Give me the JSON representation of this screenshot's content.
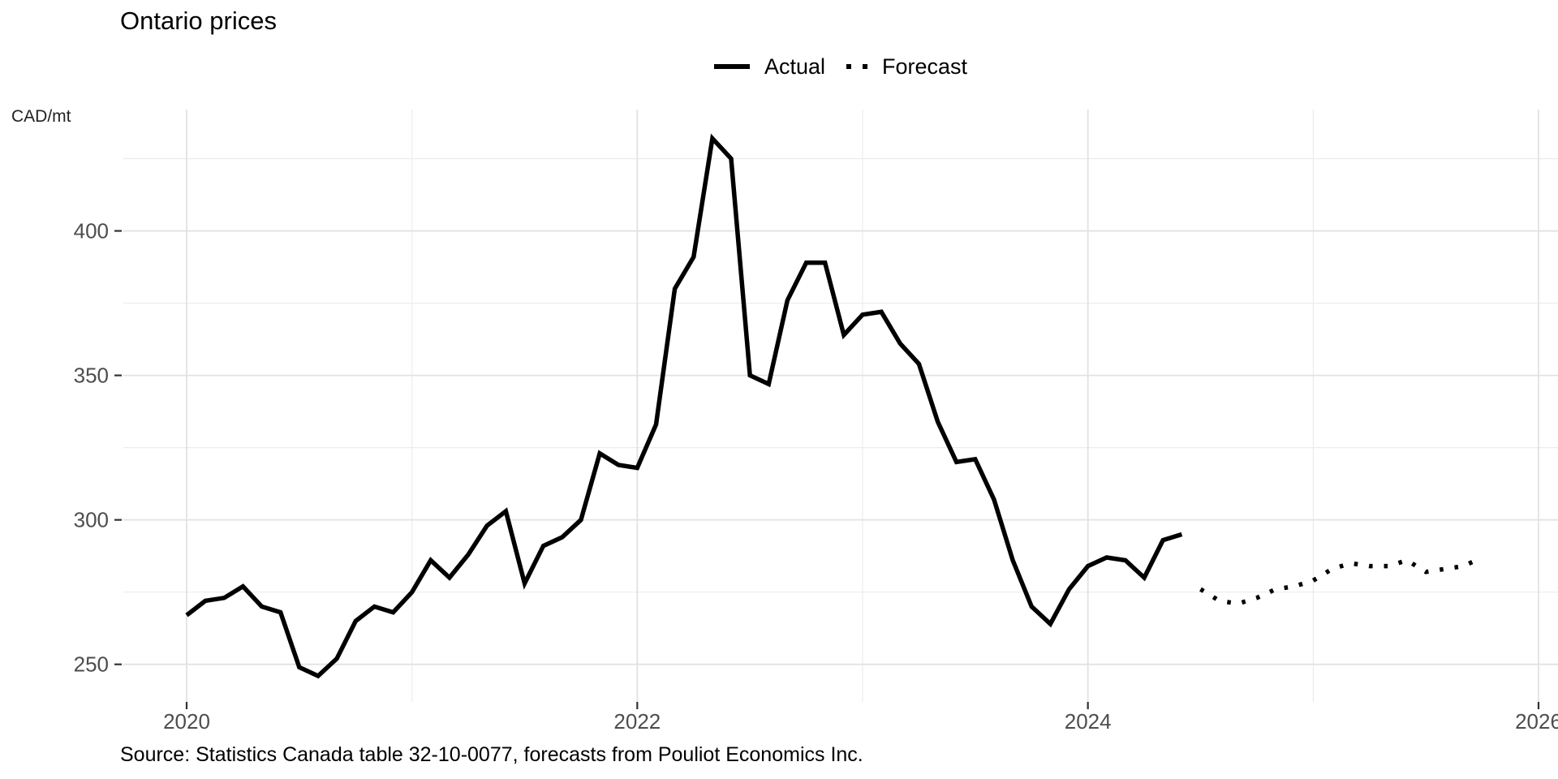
{
  "title": "Ontario prices",
  "unit_label": "CAD/mt",
  "source": "Source: Statistics Canada table 32-10-0077, forecasts from Pouliot Economics Inc.",
  "legend": {
    "actual": "Actual",
    "forecast": "Forecast"
  },
  "chart_data": {
    "type": "line",
    "title": "Ontario prices",
    "ylabel": "CAD/mt",
    "x_unit": "month",
    "x_start": "2020-01",
    "series": [
      {
        "name": "Actual",
        "style": "solid",
        "start_month_index": 0,
        "values": [
          267,
          272,
          273,
          277,
          270,
          268,
          249,
          246,
          252,
          265,
          270,
          268,
          275,
          286,
          280,
          288,
          298,
          303,
          278,
          291,
          294,
          300,
          323,
          319,
          318,
          333,
          380,
          391,
          432,
          425,
          350,
          347,
          376,
          389,
          389,
          364,
          371,
          372,
          361,
          354,
          334,
          320,
          321,
          307,
          286,
          270,
          264,
          276,
          284,
          287,
          286,
          280,
          293,
          295
        ]
      },
      {
        "name": "Forecast",
        "style": "dotted",
        "start_month_index": 54,
        "values": [
          276,
          272,
          271,
          273,
          276,
          277,
          279,
          283,
          285,
          284,
          284,
          286,
          282,
          283,
          284,
          287
        ]
      }
    ],
    "x_ticks": [
      {
        "label": "2020",
        "month_index": 0
      },
      {
        "label": "2022",
        "month_index": 24
      },
      {
        "label": "2024",
        "month_index": 48
      },
      {
        "label": "2026",
        "month_index": 72
      }
    ],
    "x_minor_month_indices": [
      12,
      36,
      60
    ],
    "y_ticks": [
      250,
      300,
      350,
      400
    ],
    "y_minor": [
      275,
      325,
      375,
      425
    ],
    "ylim": [
      237,
      442
    ],
    "grid": true,
    "legend_position": "top-center",
    "colors": {
      "line": "#000000",
      "grid_major": "#e2e2e2",
      "grid_minor": "#ececec",
      "tick_text": "#4d4d4d",
      "tick_mark": "#333333"
    }
  }
}
